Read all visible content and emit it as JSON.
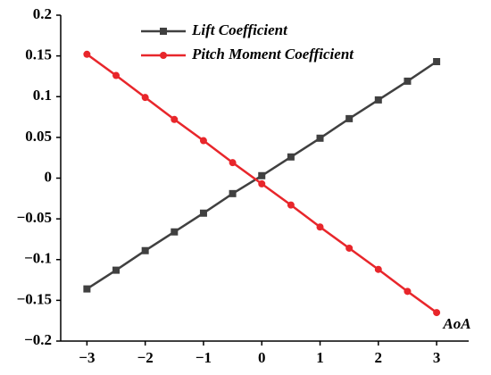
{
  "chart_data": {
    "type": "line",
    "x": [
      -3,
      -2.5,
      -2,
      -1.5,
      -1,
      -0.5,
      0,
      0.5,
      1,
      1.5,
      2,
      2.5,
      3
    ],
    "series": [
      {
        "name": "Lift Coefficient",
        "color": "#404040",
        "marker": "square",
        "values": [
          -0.136,
          -0.113,
          -0.089,
          -0.066,
          -0.043,
          -0.019,
          0.003,
          0.026,
          0.049,
          0.073,
          0.096,
          0.119,
          0.143
        ]
      },
      {
        "name": "Pitch Moment Coefficient",
        "color": "#e8262b",
        "marker": "circle",
        "values": [
          0.152,
          0.126,
          0.099,
          0.072,
          0.046,
          0.019,
          -0.007,
          -0.033,
          -0.06,
          -0.086,
          -0.112,
          -0.139,
          -0.165
        ]
      }
    ],
    "annotation": "AoA",
    "xlim": [
      -3.45,
      3.55
    ],
    "ylim": [
      -0.2,
      0.2
    ],
    "xticks": [
      {
        "value": -3,
        "label": "−3"
      },
      {
        "value": -2,
        "label": "−2"
      },
      {
        "value": -1,
        "label": "−1"
      },
      0,
      1,
      2,
      3
    ],
    "yticks": [
      {
        "value": -0.2,
        "label": "−0.2"
      },
      {
        "value": -0.15,
        "label": "−0.15"
      },
      {
        "value": -0.1,
        "label": "−0.1"
      },
      {
        "value": -0.05,
        "label": "−0.05"
      },
      0,
      0.05,
      0.1,
      0.15,
      0.2
    ],
    "grid": false,
    "legend": "top-left"
  }
}
